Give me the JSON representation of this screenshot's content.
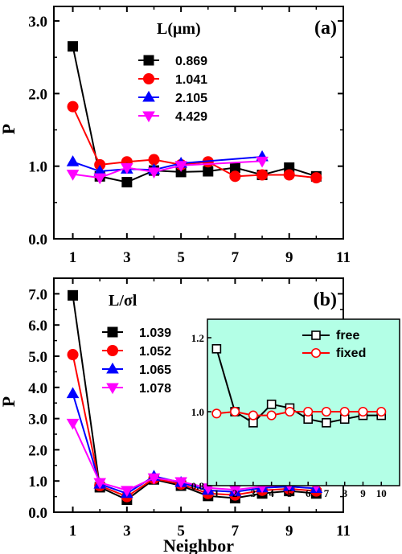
{
  "chart_data": [
    {
      "panel": "(a)",
      "type": "line",
      "ylabel": "P",
      "xlabel": "",
      "xlim": [
        0.3,
        11
      ],
      "ylim": [
        0,
        3.2
      ],
      "xticks": [
        "1",
        "3",
        "5",
        "7",
        "9",
        "11"
      ],
      "yticks": [
        "0.0",
        "1.0",
        "2.0",
        "3.0"
      ],
      "legend_title": "L(μm)",
      "legend_position": "top-center",
      "series": [
        {
          "name": "0.869",
          "color": "#000000",
          "marker": "square",
          "x": [
            1,
            2,
            3,
            4,
            5,
            6,
            7,
            8,
            9,
            10
          ],
          "y": [
            2.65,
            0.86,
            0.78,
            0.94,
            0.92,
            0.93,
            0.98,
            0.88,
            0.98,
            0.86
          ]
        },
        {
          "name": "1.041",
          "color": "#ff0000",
          "marker": "circle",
          "x": [
            1,
            2,
            3,
            4,
            5,
            6,
            7,
            8,
            9,
            10
          ],
          "y": [
            1.82,
            1.02,
            1.06,
            1.09,
            1.02,
            1.06,
            0.86,
            0.88,
            0.88,
            0.84
          ]
        },
        {
          "name": "2.105",
          "color": "#0000ff",
          "marker": "triangle-up",
          "x": [
            1,
            2,
            3,
            4,
            5,
            8
          ],
          "y": [
            1.06,
            0.93,
            0.96,
            0.95,
            1.04,
            1.13
          ]
        },
        {
          "name": "4.429",
          "color": "#ff00ff",
          "marker": "triangle-down",
          "x": [
            1,
            2,
            3,
            4,
            5,
            8
          ],
          "y": [
            0.89,
            0.84,
            0.98,
            0.92,
            1.01,
            1.07
          ]
        }
      ]
    },
    {
      "panel": "(b)",
      "type": "line",
      "ylabel": "P",
      "xlabel": "Neighbor",
      "xlim": [
        0.3,
        11
      ],
      "ylim": [
        0,
        7.5
      ],
      "xticks": [
        "1",
        "3",
        "5",
        "7",
        "9",
        "11"
      ],
      "yticks": [
        "0.0",
        "1.0",
        "2.0",
        "3.0",
        "4.0",
        "5.0",
        "6.0",
        "7.0"
      ],
      "legend_title": "L/σl",
      "legend_position": "top-left",
      "series": [
        {
          "name": "1.039",
          "color": "#000000",
          "marker": "square",
          "x": [
            1,
            2,
            3,
            4,
            5,
            6,
            7,
            8,
            9,
            10
          ],
          "y": [
            6.95,
            0.8,
            0.4,
            1.05,
            0.85,
            0.52,
            0.45,
            0.6,
            0.68,
            0.6
          ]
        },
        {
          "name": "1.052",
          "color": "#ff0000",
          "marker": "circle",
          "x": [
            1,
            2,
            3,
            4,
            5,
            6,
            7,
            8,
            9,
            10
          ],
          "y": [
            5.05,
            0.85,
            0.5,
            1.08,
            0.9,
            0.6,
            0.55,
            0.7,
            0.75,
            0.68
          ]
        },
        {
          "name": "1.065",
          "color": "#0000ff",
          "marker": "triangle-up",
          "x": [
            1,
            2,
            3,
            4,
            5,
            6,
            7,
            8,
            9,
            10
          ],
          "y": [
            3.8,
            0.9,
            0.6,
            1.15,
            0.95,
            0.7,
            0.65,
            0.78,
            0.82,
            0.76
          ]
        },
        {
          "name": "1.078",
          "color": "#ff00ff",
          "marker": "triangle-down",
          "x": [
            1,
            2,
            3,
            4,
            5,
            6,
            7,
            8,
            9,
            10
          ],
          "y": [
            2.85,
            0.95,
            0.7,
            1.1,
            0.98,
            0.78,
            0.72,
            0.82,
            0.88,
            0.85
          ]
        }
      ],
      "inset": {
        "type": "line",
        "background": "#b3ffe6",
        "xlim": [
          0.5,
          11
        ],
        "ylim": [
          0.8,
          1.25
        ],
        "xticks": [
          "1",
          "3",
          "5",
          "7",
          "9"
        ],
        "xticks_minor": [
          "2",
          "4",
          "6",
          "8",
          "10"
        ],
        "yticks": [
          "0.8",
          "1.0",
          "1.2"
        ],
        "series": [
          {
            "name": "free",
            "color": "#000000",
            "marker": "open-square",
            "x": [
              1,
              2,
              3,
              4,
              5,
              6,
              7,
              8,
              9,
              10
            ],
            "y": [
              1.17,
              1.0,
              0.97,
              1.02,
              1.01,
              0.98,
              0.97,
              0.98,
              0.99,
              0.99
            ]
          },
          {
            "name": "fixed",
            "color": "#ff0000",
            "marker": "open-circle",
            "x": [
              1,
              2,
              3,
              4,
              5,
              6,
              7,
              8,
              9,
              10
            ],
            "y": [
              0.995,
              1.0,
              0.99,
              0.99,
              1.0,
              1.0,
              1.0,
              1.0,
              1.0,
              1.0
            ]
          }
        ]
      }
    }
  ]
}
